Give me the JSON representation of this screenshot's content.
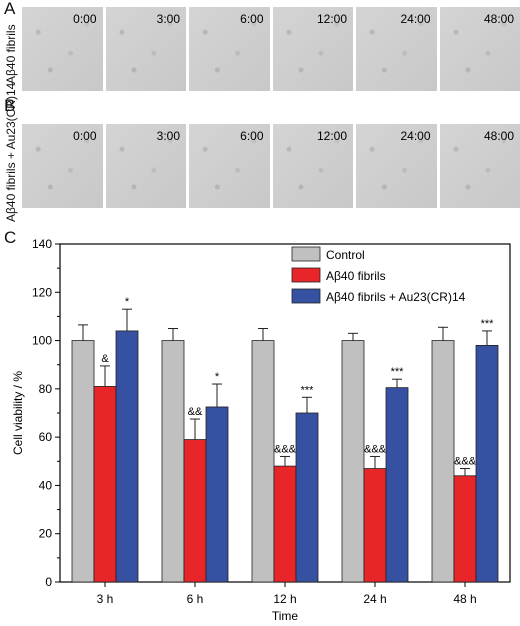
{
  "panels": {
    "a": {
      "letter": "A",
      "row_label": "Aβ40 fibrils",
      "times": [
        "0:00",
        "3:00",
        "6:00",
        "12:00",
        "24:00",
        "48:00"
      ]
    },
    "b": {
      "letter": "B",
      "row_label": "Aβ40 fibrils + Au23(CR)14",
      "times": [
        "0:00",
        "3:00",
        "6:00",
        "12:00",
        "24:00",
        "48:00"
      ]
    },
    "c": {
      "letter": "C"
    }
  },
  "chart_data": {
    "type": "bar",
    "xlabel": "Time",
    "ylabel": "Cell viability / %",
    "ylim": [
      0,
      140
    ],
    "yticks": [
      "0",
      "20",
      "40",
      "60",
      "80",
      "100",
      "120",
      "140"
    ],
    "categories": [
      "3 h",
      "6 h",
      "12 h",
      "24 h",
      "48 h"
    ],
    "legend_position": "top-right",
    "grid": false,
    "series": [
      {
        "name": "Control",
        "color": "#c0c0c0",
        "values": [
          100,
          100,
          100,
          100,
          100
        ],
        "errors": [
          6.5,
          5,
          5,
          3,
          5.5
        ],
        "annotations": [
          "",
          "",
          "",
          "",
          ""
        ]
      },
      {
        "name": "Aβ40 fibrils",
        "color": "#e8262a",
        "values": [
          81,
          59,
          48,
          47,
          44
        ],
        "errors": [
          8.5,
          8.5,
          4,
          5,
          3
        ],
        "annotations": [
          "&",
          "&&",
          "&&&",
          "&&&",
          "&&&"
        ]
      },
      {
        "name": "Aβ40 fibrils + Au23(CR)14",
        "color": "#3650a2",
        "values": [
          104,
          72.5,
          70,
          80.5,
          98
        ],
        "errors": [
          9,
          9.5,
          6.5,
          3.5,
          6
        ],
        "annotations": [
          "*",
          "*",
          "***",
          "***",
          "***"
        ]
      }
    ]
  }
}
